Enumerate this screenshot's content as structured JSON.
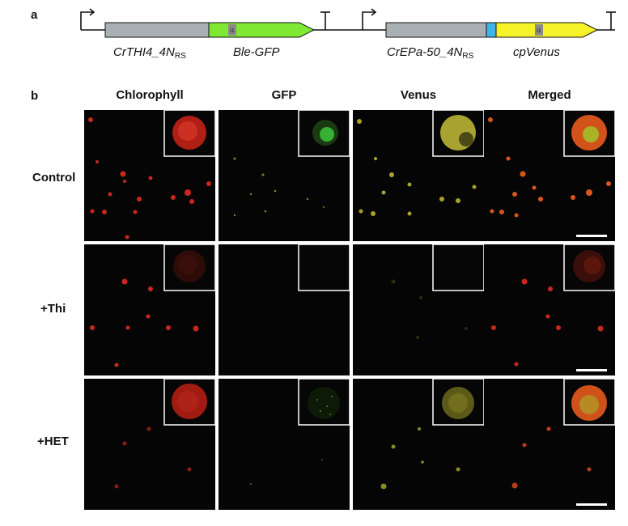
{
  "panel_a": {
    "letter": "a",
    "construct1": {
      "promoter": "CrTHI4_4N",
      "promoter_sub": "RS",
      "gene": "Ble-GFP",
      "intron": "i1"
    },
    "construct2": {
      "promoter": "CrEPa-50_4N",
      "promoter_sub": "RS",
      "gene": "cpVenus",
      "intron": "i1"
    },
    "colors": {
      "promoter_box": "#a9b0b3",
      "ble_gfp": "#7ee832",
      "cpvenus": "#f5f22a",
      "linker": "#3eb4e8",
      "intron": "#8a8a8a"
    }
  },
  "panel_b": {
    "letter": "b",
    "columns": [
      "Chlorophyll",
      "GFP",
      "Venus",
      "Merged"
    ],
    "rows": [
      "Control",
      "+Thi",
      "+HET"
    ]
  }
}
